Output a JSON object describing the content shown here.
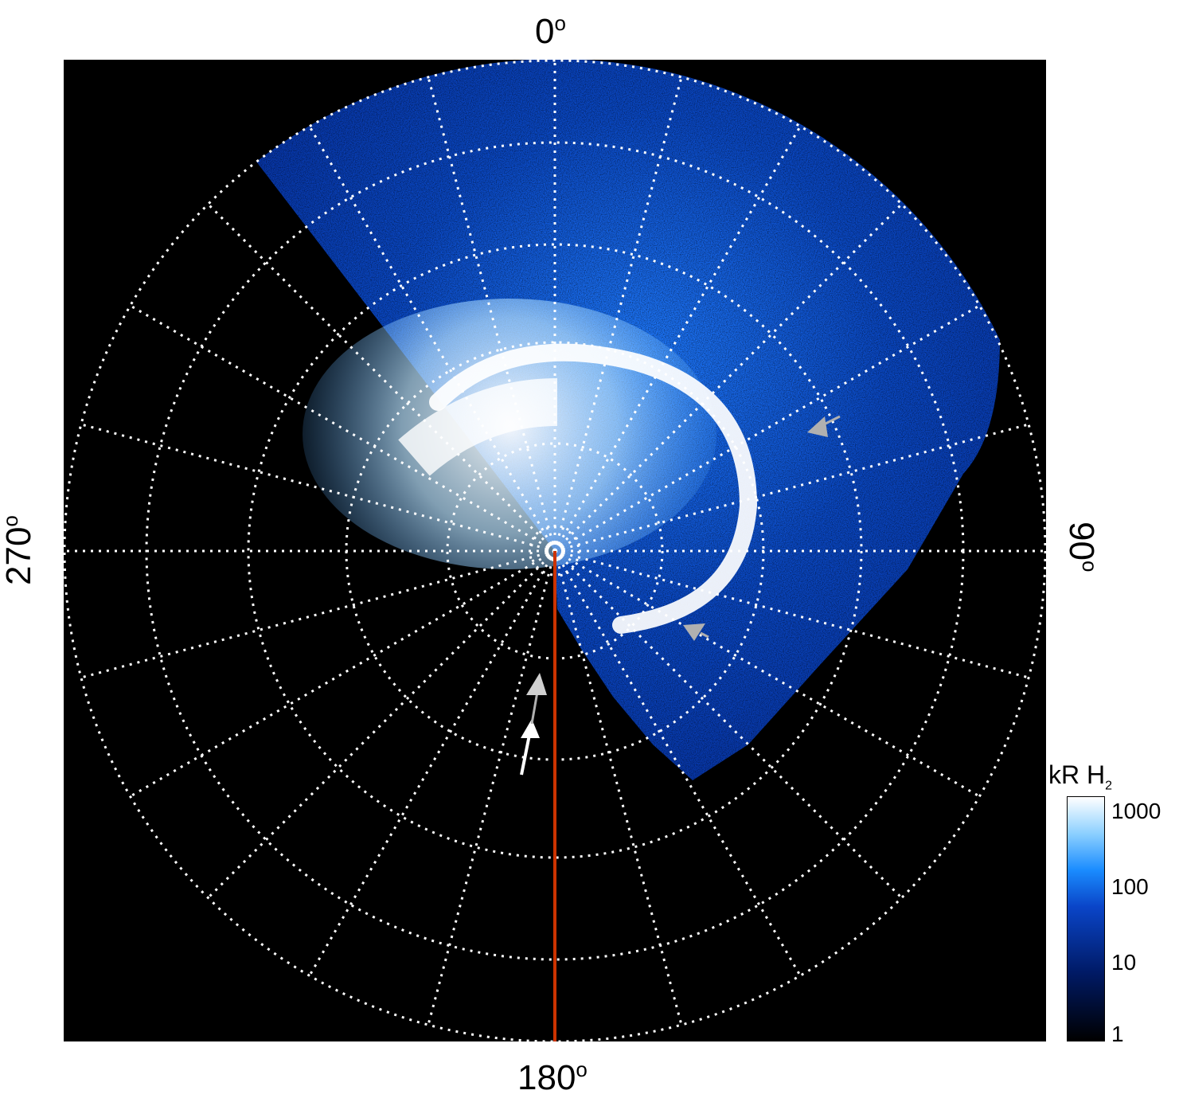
{
  "axis_labels": {
    "top": "0",
    "bottom": "180",
    "left": "270",
    "right": "90",
    "degree_symbol": "o"
  },
  "colorbar": {
    "title": "kR H",
    "title_subscript": "2",
    "ticks": [
      "1000",
      "100",
      "10",
      "1"
    ],
    "scale": "log"
  },
  "colors": {
    "background": "#000000",
    "grid": "#ffffff",
    "meridian_line": "#cc3300",
    "arrow_white": "#ffffff",
    "arrow_gray": "#b0b0b0"
  }
}
